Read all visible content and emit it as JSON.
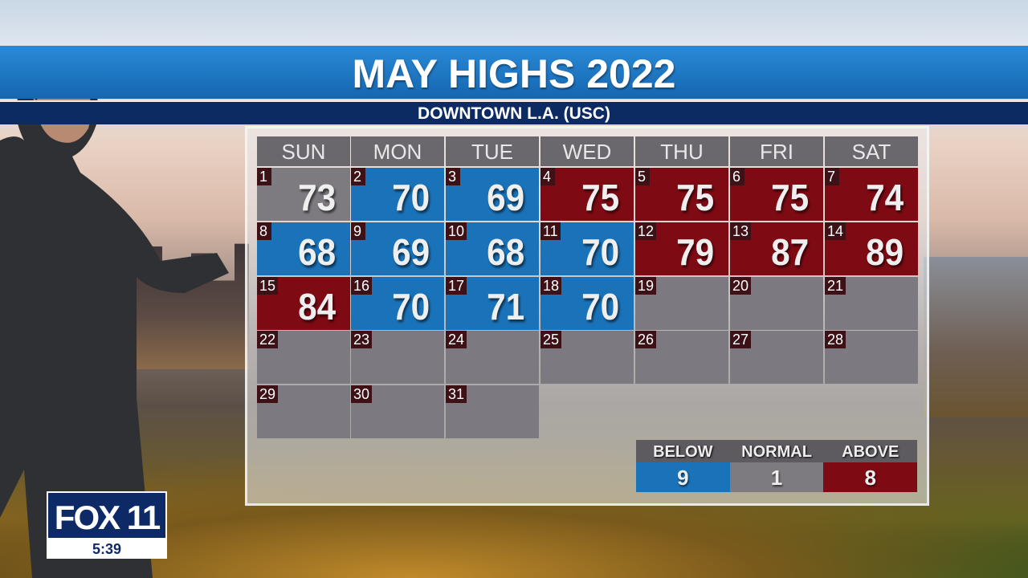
{
  "title": "MAY HIGHS 2022",
  "subtitle": "DOWNTOWN L.A. (USC)",
  "colors": {
    "below": "#1a72b8",
    "normal": "#7d7a80",
    "above": "#7e0a14",
    "empty": "#7c7a80"
  },
  "weekdays": [
    "SUN",
    "MON",
    "TUE",
    "WED",
    "THU",
    "FRI",
    "SAT"
  ],
  "days": [
    {
      "day": "1",
      "high": "73",
      "status": "normal"
    },
    {
      "day": "2",
      "high": "70",
      "status": "below"
    },
    {
      "day": "3",
      "high": "69",
      "status": "below"
    },
    {
      "day": "4",
      "high": "75",
      "status": "above"
    },
    {
      "day": "5",
      "high": "75",
      "status": "above"
    },
    {
      "day": "6",
      "high": "75",
      "status": "above"
    },
    {
      "day": "7",
      "high": "74",
      "status": "above"
    },
    {
      "day": "8",
      "high": "68",
      "status": "below"
    },
    {
      "day": "9",
      "high": "69",
      "status": "below"
    },
    {
      "day": "10",
      "high": "68",
      "status": "below"
    },
    {
      "day": "11",
      "high": "70",
      "status": "below"
    },
    {
      "day": "12",
      "high": "79",
      "status": "above"
    },
    {
      "day": "13",
      "high": "87",
      "status": "above"
    },
    {
      "day": "14",
      "high": "89",
      "status": "above"
    },
    {
      "day": "15",
      "high": "84",
      "status": "above"
    },
    {
      "day": "16",
      "high": "70",
      "status": "below"
    },
    {
      "day": "17",
      "high": "71",
      "status": "below"
    },
    {
      "day": "18",
      "high": "70",
      "status": "below"
    },
    {
      "day": "19",
      "high": "",
      "status": "empty"
    },
    {
      "day": "20",
      "high": "",
      "status": "empty"
    },
    {
      "day": "21",
      "high": "",
      "status": "empty"
    },
    {
      "day": "22",
      "high": "",
      "status": "empty"
    },
    {
      "day": "23",
      "high": "",
      "status": "empty"
    },
    {
      "day": "24",
      "high": "",
      "status": "empty"
    },
    {
      "day": "25",
      "high": "",
      "status": "empty"
    },
    {
      "day": "26",
      "high": "",
      "status": "empty"
    },
    {
      "day": "27",
      "high": "",
      "status": "empty"
    },
    {
      "day": "28",
      "high": "",
      "status": "empty"
    },
    {
      "day": "29",
      "high": "",
      "status": "empty"
    },
    {
      "day": "30",
      "high": "",
      "status": "empty"
    },
    {
      "day": "31",
      "high": "",
      "status": "empty"
    }
  ],
  "legend": [
    {
      "label": "BELOW",
      "count": "9",
      "status": "below"
    },
    {
      "label": "NORMAL",
      "count": "1",
      "status": "normal"
    },
    {
      "label": "ABOVE",
      "count": "8",
      "status": "above"
    }
  ],
  "logo": {
    "text": "FOX 11",
    "time": "5:39"
  }
}
